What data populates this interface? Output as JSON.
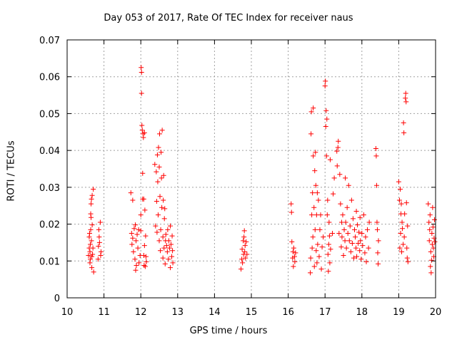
{
  "chart_data": {
    "type": "scatter",
    "title": "Day 053 of 2017, Rate Of TEC Index for receiver naus",
    "xlabel": "GPS time / hours",
    "ylabel": "ROTI / TECUs",
    "xlim": [
      10,
      20
    ],
    "ylim": [
      0,
      0.07
    ],
    "xticks": [
      10,
      11,
      12,
      13,
      14,
      15,
      16,
      17,
      18,
      19,
      20
    ],
    "xtick_labels": [
      "10",
      "11",
      "12",
      "13",
      "14",
      "15",
      "16",
      "17",
      "18",
      "19",
      "20"
    ],
    "yticks": [
      0,
      0.01,
      0.02,
      0.03,
      0.04,
      0.05,
      0.06,
      0.07
    ],
    "ytick_labels": [
      "0",
      "0.01",
      "0.02",
      "0.03",
      "0.04",
      "0.05",
      "0.06",
      "0.07"
    ],
    "grid": true,
    "marker": "+",
    "color": "#ff0000",
    "series": [
      {
        "name": "ROTI",
        "points": [
          [
            10.58,
            0.0115
          ],
          [
            10.6,
            0.0135
          ],
          [
            10.6,
            0.0165
          ],
          [
            10.61,
            0.0175
          ],
          [
            10.62,
            0.0095
          ],
          [
            10.62,
            0.0125
          ],
          [
            10.63,
            0.0105
          ],
          [
            10.63,
            0.0145
          ],
          [
            10.64,
            0.0185
          ],
          [
            10.64,
            0.0228
          ],
          [
            10.65,
            0.0255
          ],
          [
            10.65,
            0.0218
          ],
          [
            10.66,
            0.0268
          ],
          [
            10.66,
            0.0155
          ],
          [
            10.67,
            0.0112
          ],
          [
            10.67,
            0.0082
          ],
          [
            10.68,
            0.0278
          ],
          [
            10.68,
            0.0198
          ],
          [
            10.69,
            0.0118
          ],
          [
            10.7,
            0.0135
          ],
          [
            10.71,
            0.0295
          ],
          [
            10.72,
            0.007
          ],
          [
            10.84,
            0.0105
          ],
          [
            10.85,
            0.014
          ],
          [
            10.86,
            0.0185
          ],
          [
            10.87,
            0.0165
          ],
          [
            10.88,
            0.015
          ],
          [
            10.9,
            0.0205
          ],
          [
            10.91,
            0.0115
          ],
          [
            10.92,
            0.0125
          ],
          [
            11.73,
            0.0285
          ],
          [
            11.75,
            0.0175
          ],
          [
            11.76,
            0.0145
          ],
          [
            11.78,
            0.0162
          ],
          [
            11.78,
            0.0265
          ],
          [
            11.8,
            0.0125
          ],
          [
            11.82,
            0.0188
          ],
          [
            11.84,
            0.0105
          ],
          [
            11.85,
            0.0198
          ],
          [
            11.86,
            0.0075
          ],
          [
            11.87,
            0.0155
          ],
          [
            11.88,
            0.0088
          ],
          [
            11.9,
            0.0172
          ],
          [
            11.92,
            0.0135
          ],
          [
            11.94,
            0.0185
          ],
          [
            11.95,
            0.0095
          ],
          [
            11.98,
            0.0115
          ],
          [
            12.0,
            0.0225
          ],
          [
            12.0,
            0.0182
          ],
          [
            12.01,
            0.0625
          ],
          [
            12.02,
            0.0612
          ],
          [
            12.02,
            0.0555
          ],
          [
            12.03,
            0.0468
          ],
          [
            12.04,
            0.0455
          ],
          [
            12.05,
            0.0338
          ],
          [
            12.05,
            0.0268
          ],
          [
            12.06,
            0.0445
          ],
          [
            12.07,
            0.0435
          ],
          [
            12.08,
            0.0268
          ],
          [
            12.08,
            0.0115
          ],
          [
            12.09,
            0.0088
          ],
          [
            12.1,
            0.0142
          ],
          [
            12.1,
            0.0448
          ],
          [
            12.11,
            0.0238
          ],
          [
            12.12,
            0.0085
          ],
          [
            12.13,
            0.0168
          ],
          [
            12.14,
            0.0112
          ],
          [
            12.15,
            0.0098
          ],
          [
            12.38,
            0.0362
          ],
          [
            12.4,
            0.0195
          ],
          [
            12.42,
            0.0342
          ],
          [
            12.43,
            0.0262
          ],
          [
            12.44,
            0.0178
          ],
          [
            12.45,
            0.0388
          ],
          [
            12.46,
            0.0315
          ],
          [
            12.47,
            0.0225
          ],
          [
            12.48,
            0.0408
          ],
          [
            12.5,
            0.0155
          ],
          [
            12.5,
            0.0355
          ],
          [
            12.51,
            0.0445
          ],
          [
            12.52,
            0.0275
          ],
          [
            12.53,
            0.0128
          ],
          [
            12.54,
            0.0185
          ],
          [
            12.55,
            0.0395
          ],
          [
            12.56,
            0.0325
          ],
          [
            12.57,
            0.0245
          ],
          [
            12.58,
            0.0455
          ],
          [
            12.6,
            0.0165
          ],
          [
            12.6,
            0.0108
          ],
          [
            12.61,
            0.0265
          ],
          [
            12.62,
            0.0332
          ],
          [
            12.63,
            0.0135
          ],
          [
            12.64,
            0.0215
          ],
          [
            12.65,
            0.0242
          ],
          [
            12.66,
            0.0092
          ],
          [
            12.67,
            0.0155
          ],
          [
            12.68,
            0.0172
          ],
          [
            12.7,
            0.0142
          ],
          [
            12.72,
            0.0125
          ],
          [
            12.73,
            0.0185
          ],
          [
            12.75,
            0.0105
          ],
          [
            12.76,
            0.0155
          ],
          [
            12.78,
            0.0135
          ],
          [
            12.8,
            0.0082
          ],
          [
            12.8,
            0.0195
          ],
          [
            12.82,
            0.0145
          ],
          [
            12.84,
            0.0112
          ],
          [
            12.85,
            0.0168
          ],
          [
            12.86,
            0.0128
          ],
          [
            12.87,
            0.0095
          ],
          [
            14.72,
            0.0078
          ],
          [
            14.74,
            0.0105
          ],
          [
            14.75,
            0.0132
          ],
          [
            14.76,
            0.0095
          ],
          [
            14.78,
            0.0155
          ],
          [
            14.79,
            0.0118
          ],
          [
            14.8,
            0.0165
          ],
          [
            14.81,
            0.0182
          ],
          [
            14.82,
            0.0125
          ],
          [
            14.83,
            0.0142
          ],
          [
            14.84,
            0.0108
          ],
          [
            14.86,
            0.0152
          ],
          [
            14.88,
            0.0118
          ],
          [
            16.08,
            0.0255
          ],
          [
            16.09,
            0.0232
          ],
          [
            16.1,
            0.0152
          ],
          [
            16.12,
            0.0108
          ],
          [
            16.13,
            0.0125
          ],
          [
            16.14,
            0.0085
          ],
          [
            16.15,
            0.0135
          ],
          [
            16.17,
            0.0112
          ],
          [
            16.18,
            0.0098
          ],
          [
            16.2,
            0.0122
          ],
          [
            16.6,
            0.0068
          ],
          [
            16.61,
            0.0108
          ],
          [
            16.62,
            0.0445
          ],
          [
            16.63,
            0.0505
          ],
          [
            16.64,
            0.0225
          ],
          [
            16.65,
            0.0135
          ],
          [
            16.66,
            0.0285
          ],
          [
            16.67,
            0.0165
          ],
          [
            16.68,
            0.0515
          ],
          [
            16.68,
            0.0385
          ],
          [
            16.7,
            0.0245
          ],
          [
            16.71,
            0.0085
          ],
          [
            16.72,
            0.0345
          ],
          [
            16.73,
            0.0185
          ],
          [
            16.74,
            0.0395
          ],
          [
            16.75,
            0.0305
          ],
          [
            16.76,
            0.0128
          ],
          [
            16.77,
            0.0225
          ],
          [
            16.78,
            0.0095
          ],
          [
            16.79,
            0.0285
          ],
          [
            16.8,
            0.0145
          ],
          [
            16.82,
            0.0265
          ],
          [
            16.84,
            0.0112
          ],
          [
            16.86,
            0.0185
          ],
          [
            16.88,
            0.0225
          ],
          [
            16.9,
            0.0078
          ],
          [
            16.92,
            0.0138
          ],
          [
            16.95,
            0.0165
          ],
          [
            17.0,
            0.0575
          ],
          [
            17.01,
            0.0588
          ],
          [
            17.02,
            0.0465
          ],
          [
            17.03,
            0.0508
          ],
          [
            17.04,
            0.0385
          ],
          [
            17.05,
            0.0485
          ],
          [
            17.06,
            0.0225
          ],
          [
            17.07,
            0.0265
          ],
          [
            17.08,
            0.0118
          ],
          [
            17.09,
            0.0072
          ],
          [
            17.1,
            0.0145
          ],
          [
            17.11,
            0.0205
          ],
          [
            17.12,
            0.0168
          ],
          [
            17.13,
            0.0095
          ],
          [
            17.14,
            0.0375
          ],
          [
            17.15,
            0.0132
          ],
          [
            17.2,
            0.0175
          ],
          [
            17.22,
            0.0282
          ],
          [
            17.25,
            0.0325
          ],
          [
            17.32,
            0.0398
          ],
          [
            17.33,
            0.0358
          ],
          [
            17.35,
            0.0408
          ],
          [
            17.36,
            0.0425
          ],
          [
            17.38,
            0.0175
          ],
          [
            17.4,
            0.0335
          ],
          [
            17.42,
            0.0255
          ],
          [
            17.44,
            0.0138
          ],
          [
            17.45,
            0.0205
          ],
          [
            17.46,
            0.0165
          ],
          [
            17.48,
            0.0225
          ],
          [
            17.5,
            0.0115
          ],
          [
            17.52,
            0.0185
          ],
          [
            17.54,
            0.0155
          ],
          [
            17.55,
            0.0325
          ],
          [
            17.56,
            0.0205
          ],
          [
            17.58,
            0.0135
          ],
          [
            17.6,
            0.0245
          ],
          [
            17.62,
            0.0175
          ],
          [
            17.64,
            0.0305
          ],
          [
            17.66,
            0.0155
          ],
          [
            17.68,
            0.0195
          ],
          [
            17.7,
            0.0125
          ],
          [
            17.72,
            0.0265
          ],
          [
            17.74,
            0.0148
          ],
          [
            17.76,
            0.0215
          ],
          [
            17.78,
            0.0108
          ],
          [
            17.8,
            0.0185
          ],
          [
            17.82,
            0.0165
          ],
          [
            17.84,
            0.0135
          ],
          [
            17.85,
            0.0235
          ],
          [
            17.86,
            0.0112
          ],
          [
            17.88,
            0.0198
          ],
          [
            17.9,
            0.0148
          ],
          [
            17.92,
            0.0178
          ],
          [
            17.94,
            0.0128
          ],
          [
            17.95,
            0.0218
          ],
          [
            17.96,
            0.0155
          ],
          [
            17.98,
            0.0105
          ],
          [
            18.0,
            0.0175
          ],
          [
            18.02,
            0.0142
          ],
          [
            18.05,
            0.0225
          ],
          [
            18.08,
            0.0122
          ],
          [
            18.1,
            0.0165
          ],
          [
            18.12,
            0.0098
          ],
          [
            18.15,
            0.0185
          ],
          [
            18.18,
            0.0135
          ],
          [
            18.2,
            0.0205
          ],
          [
            18.38,
            0.0405
          ],
          [
            18.39,
            0.0385
          ],
          [
            18.4,
            0.0305
          ],
          [
            18.41,
            0.0205
          ],
          [
            18.42,
            0.0185
          ],
          [
            18.43,
            0.0122
          ],
          [
            18.44,
            0.0092
          ],
          [
            18.45,
            0.0155
          ],
          [
            19.0,
            0.0315
          ],
          [
            19.02,
            0.0265
          ],
          [
            19.03,
            0.0135
          ],
          [
            19.04,
            0.0295
          ],
          [
            19.05,
            0.0175
          ],
          [
            19.06,
            0.0228
          ],
          [
            19.07,
            0.0255
          ],
          [
            19.08,
            0.0125
          ],
          [
            19.09,
            0.0205
          ],
          [
            19.1,
            0.0188
          ],
          [
            19.12,
            0.0145
          ],
          [
            19.13,
            0.0475
          ],
          [
            19.14,
            0.0448
          ],
          [
            19.15,
            0.0165
          ],
          [
            19.16,
            0.0228
          ],
          [
            19.18,
            0.0542
          ],
          [
            19.19,
            0.0555
          ],
          [
            19.2,
            0.0532
          ],
          [
            19.21,
            0.0258
          ],
          [
            19.22,
            0.0135
          ],
          [
            19.23,
            0.0108
          ],
          [
            19.24,
            0.0195
          ],
          [
            19.25,
            0.0098
          ],
          [
            19.8,
            0.0255
          ],
          [
            19.82,
            0.0205
          ],
          [
            19.83,
            0.0155
          ],
          [
            19.84,
            0.0185
          ],
          [
            19.85,
            0.0225
          ],
          [
            19.86,
            0.0085
          ],
          [
            19.87,
            0.0125
          ],
          [
            19.88,
            0.0068
          ],
          [
            19.89,
            0.0102
          ],
          [
            19.9,
            0.0175
          ],
          [
            19.91,
            0.0145
          ],
          [
            19.92,
            0.0245
          ],
          [
            19.93,
            0.0192
          ],
          [
            19.94,
            0.0135
          ],
          [
            19.95,
            0.0112
          ],
          [
            19.96,
            0.0162
          ],
          [
            19.97,
            0.0212
          ],
          [
            19.98,
            0.0152
          ]
        ]
      }
    ]
  }
}
